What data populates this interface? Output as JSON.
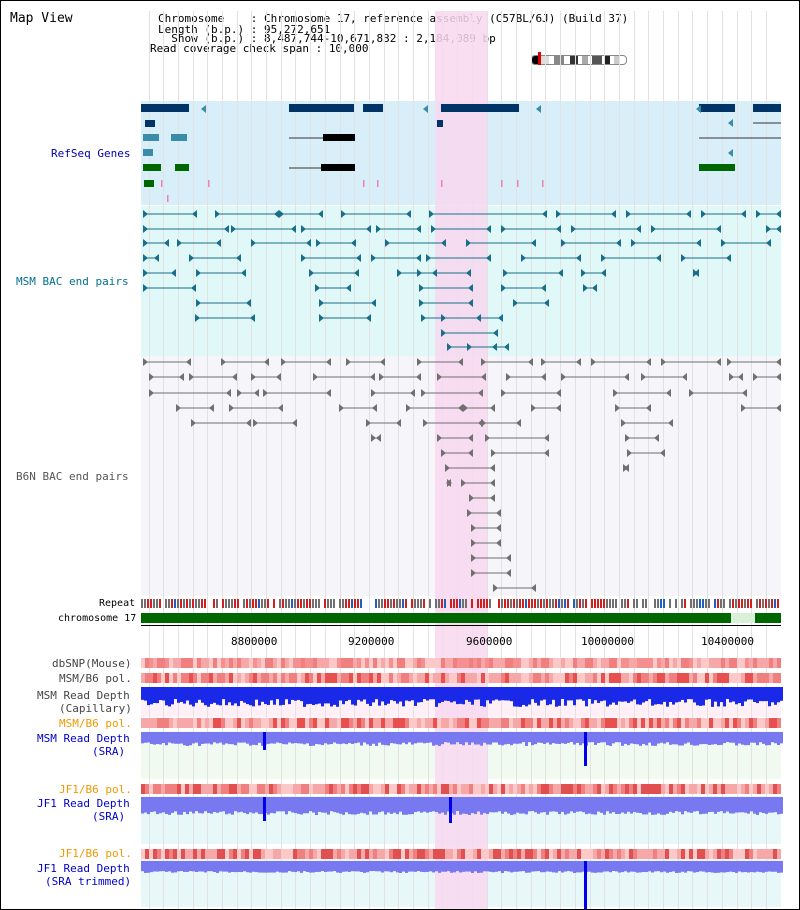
{
  "map_title": "Map View",
  "header": {
    "chromosome_label": "Chromosome    : ",
    "chromosome_value": "Chromosome 17, reference assembly (C57BL/6J) (Build 37)",
    "length_label": "Length (b.p.) : ",
    "length_value": "95,272,651",
    "show_label": "  Show (b.p.) : ",
    "show_value": "8,487,744-10,671,832 : 2,184,089 bp",
    "span_label": "Read coverage check span : ",
    "span_value": "10,000"
  },
  "tracks": {
    "refseq": "RefSeq Genes",
    "msm_bac": "MSM BAC end pairs",
    "b6n_bac": "B6N BAC end pairs",
    "repeat": "Repeat",
    "chromosome": "chromosome 17",
    "dbsnp": "dbSNP(Mouse)",
    "msm_b6_pol_1": "MSM/B6 pol.",
    "msm_read_depth_cap_1": "MSM Read Depth",
    "msm_read_depth_cap_2": "(Capillary)",
    "msm_b6_pol_2": "MSM/B6 pol.",
    "msm_read_depth_sra_1": "MSM Read Depth",
    "msm_read_depth_sra_2": "(SRA)",
    "jf1_b6_pol_1": "JF1/B6 pol.",
    "jf1_read_depth_sra_1": "JF1 Read Depth",
    "jf1_read_depth_sra_2": "(SRA)",
    "jf1_b6_pol_2": "JF1/B6 pol.",
    "jf1_read_depth_trim_1": "JF1 Read Depth",
    "jf1_read_depth_trim_2": "(SRA trimmed)"
  },
  "axis": {
    "ticks": [
      "8800000",
      "9200000",
      "9600000",
      "10000000",
      "10400000"
    ]
  },
  "colors": {
    "highlight": "#f8d8f0",
    "refseq_bg": "#d8eef8",
    "msm_bg": "#e0f8f8",
    "b6n_bg": "#f4f4fa",
    "gene_dark": "#003366",
    "gene_teal": "#3a8ca8",
    "gene_green": "#006600",
    "msm_line": "#1a6e8a",
    "b6n_line": "#707070",
    "chrom_green": "#006600",
    "depth_blue": "#0000ee",
    "depth_light": "#7878f0",
    "track_blue": "#0000cc",
    "track_orange": "#f09800",
    "track_teal": "#007090"
  }
}
